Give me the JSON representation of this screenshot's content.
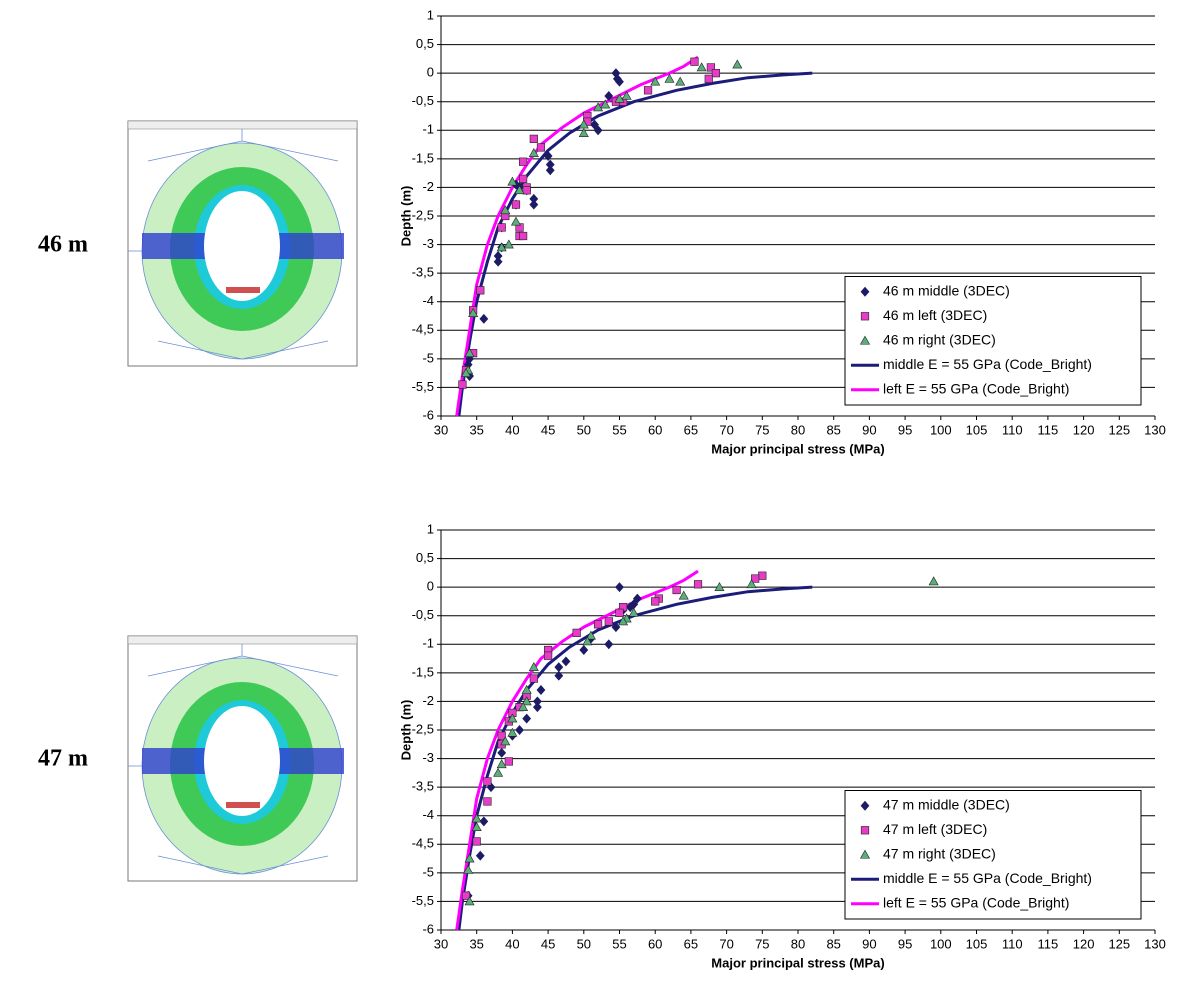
{
  "labels": [
    "46 m",
    "47 m"
  ],
  "chart_data": [
    {
      "type": "scatter",
      "legend": "lower right",
      "xlabel": "Major principal stress (MPa)",
      "ylabel": "Depth (m)",
      "xlim": [
        30,
        130
      ],
      "ylim": [
        -6,
        1
      ],
      "xticks": [
        30,
        35,
        40,
        45,
        50,
        55,
        60,
        65,
        70,
        75,
        80,
        85,
        90,
        95,
        100,
        105,
        110,
        115,
        120,
        125,
        130
      ],
      "yticks": [
        -6,
        {
          "value": -5.5,
          "label": "-5,5"
        },
        -5,
        {
          "value": -4.5,
          "label": "-4,5"
        },
        -4,
        {
          "value": -3.5,
          "label": "-3,5"
        },
        -3,
        {
          "value": -2.5,
          "label": "-2,5"
        },
        -2,
        {
          "value": -1.5,
          "label": "-1,5"
        },
        -1,
        {
          "value": -0.5,
          "label": "-0,5"
        },
        0,
        {
          "value": 0.5,
          "label": "0,5"
        },
        1
      ],
      "grid": true,
      "series": [
        {
          "name": "46 m middle (3DEC)",
          "marker": "diamond",
          "color": "#1c1c66",
          "x": [
            54.5,
            54.7,
            55,
            53.5,
            52,
            51.5,
            50.5,
            45,
            45.3,
            45.3,
            42,
            43,
            43,
            41,
            40.5,
            40.5,
            38.5,
            38,
            38,
            38.5,
            36,
            34,
            33.8,
            34
          ],
          "values": [
            0,
            -0.1,
            -0.15,
            -0.4,
            -1,
            -0.9,
            -0.8,
            -1.45,
            -1.6,
            -1.7,
            -2.05,
            -2.2,
            -2.3,
            -2,
            -1.95,
            -2.3,
            -2.7,
            -3.2,
            -3.3,
            -3.05,
            -4.3,
            -5,
            -5.1,
            -5.3
          ]
        },
        {
          "name": "46 m left (3DEC)",
          "marker": "square",
          "color": "#e63cc8",
          "x": [
            65.5,
            67.8,
            68.5,
            67.5,
            59,
            55.5,
            54.5,
            50.5,
            50.5,
            44,
            43,
            41.5,
            41.5,
            42,
            42,
            40.5,
            41,
            41,
            41.5,
            39,
            38.5,
            35.5,
            34.5,
            34.5,
            33.5,
            33
          ],
          "values": [
            0.2,
            0.1,
            0,
            -0.1,
            -0.3,
            -0.5,
            -0.5,
            -0.75,
            -0.85,
            -1.3,
            -1.15,
            -1.55,
            -1.85,
            -2,
            -2.05,
            -2.3,
            -2.7,
            -2.85,
            -2.85,
            -2.5,
            -2.7,
            -3.8,
            -4.15,
            -4.9,
            -5.2,
            -5.45
          ]
        },
        {
          "name": "46 m right (3DEC)",
          "marker": "triangle",
          "color": "#5aae7a",
          "x": [
            71.5,
            66.5,
            63.5,
            62,
            60,
            56,
            55,
            53,
            52,
            50,
            50,
            43,
            40,
            41,
            39,
            40.5,
            39.5,
            38.5,
            34.5,
            34,
            33.8,
            33.5
          ],
          "values": [
            0.15,
            0.1,
            -0.15,
            -0.1,
            -0.15,
            -0.4,
            -0.45,
            -0.55,
            -0.6,
            -0.9,
            -1.05,
            -1.4,
            -1.9,
            -2.05,
            -2.4,
            -2.6,
            -3,
            -3.05,
            -4.2,
            -4.9,
            -5.2,
            -5.25
          ]
        },
        {
          "name": "middle E = 55 GPa (Code_Bright)",
          "color": "#1c1c7a",
          "x": [
            32.5,
            33,
            34,
            35,
            36.5,
            38,
            40,
            42,
            45,
            48,
            52,
            57,
            63,
            68,
            73,
            78,
            82
          ],
          "values": [
            -6,
            -5.5,
            -4.7,
            -4,
            -3.3,
            -2.7,
            -2.2,
            -1.8,
            -1.35,
            -1.05,
            -0.75,
            -0.5,
            -0.3,
            -0.18,
            -0.08,
            -0.03,
            0
          ]
        },
        {
          "name": "left E = 55 GPa (Code_Bright)",
          "color": "#ff00ff",
          "x": [
            32.2,
            33,
            34,
            35,
            36.5,
            38,
            40,
            42,
            44,
            47,
            50,
            54,
            58,
            62,
            64,
            66
          ],
          "values": [
            -6,
            -5.3,
            -4.5,
            -3.7,
            -3,
            -2.5,
            -2,
            -1.6,
            -1.25,
            -0.95,
            -0.7,
            -0.45,
            -0.2,
            0,
            0.12,
            0.28
          ]
        }
      ]
    },
    {
      "type": "scatter",
      "legend": "lower right",
      "xlabel": "Major principal stress (MPa)",
      "ylabel": "Depth (m)",
      "xlim": [
        30,
        130
      ],
      "ylim": [
        -6,
        1
      ],
      "xticks": [
        30,
        35,
        40,
        45,
        50,
        55,
        60,
        65,
        70,
        75,
        80,
        85,
        90,
        95,
        100,
        105,
        110,
        115,
        120,
        125,
        130
      ],
      "yticks": [
        -6,
        {
          "value": -5.5,
          "label": "-5,5"
        },
        -5,
        {
          "value": -4.5,
          "label": "-4,5"
        },
        -4,
        {
          "value": -3.5,
          "label": "-3,5"
        },
        -3,
        {
          "value": -2.5,
          "label": "-2,5"
        },
        -2,
        {
          "value": -1.5,
          "label": "-1,5"
        },
        -1,
        {
          "value": -0.5,
          "label": "-0,5"
        },
        0,
        {
          "value": 0.5,
          "label": "0,5"
        },
        1
      ],
      "grid": true,
      "series": [
        {
          "name": "47 m middle (3DEC)",
          "marker": "diamond",
          "color": "#1c1c66",
          "x": [
            55,
            57.5,
            57,
            56.5,
            55.5,
            54.5,
            53.5,
            51,
            50,
            47.5,
            46.5,
            46.5,
            44,
            43.5,
            43.5,
            42,
            41,
            40,
            38.5,
            37,
            36,
            35.5,
            33.8
          ],
          "values": [
            0,
            -0.2,
            -0.3,
            -0.35,
            -0.4,
            -0.7,
            -1,
            -0.9,
            -1.1,
            -1.3,
            -1.4,
            -1.55,
            -1.8,
            -2,
            -2.1,
            -2.3,
            -2.5,
            -2.6,
            -2.9,
            -3.5,
            -4.1,
            -4.7,
            -5.4
          ]
        },
        {
          "name": "47 m left (3DEC)",
          "marker": "square",
          "color": "#e63cc8",
          "x": [
            75,
            74,
            66,
            63,
            60.5,
            60,
            55.5,
            55,
            53.5,
            52,
            49,
            45,
            45,
            43,
            42,
            41,
            40,
            39.5,
            38.5,
            38.5,
            39.5,
            36.5,
            36.5,
            35,
            33.5
          ],
          "values": [
            0.2,
            0.15,
            0.05,
            -0.05,
            -0.2,
            -0.25,
            -0.35,
            -0.45,
            -0.6,
            -0.65,
            -0.8,
            -1.1,
            -1.2,
            -1.6,
            -1.9,
            -2.1,
            -2.2,
            -2.35,
            -2.6,
            -2.75,
            -3.05,
            -3.4,
            -3.75,
            -4.45,
            -5.4
          ]
        },
        {
          "name": "47 m right (3DEC)",
          "marker": "triangle",
          "color": "#5aae7a",
          "x": [
            99,
            73.5,
            69,
            64,
            57,
            56,
            55.5,
            51,
            50.5,
            43,
            42,
            42,
            41.5,
            40,
            40,
            39,
            38.5,
            38,
            35,
            35,
            34,
            33.8,
            34
          ],
          "values": [
            0.1,
            0.05,
            0,
            -0.15,
            -0.45,
            -0.55,
            -0.6,
            -0.85,
            -0.95,
            -1.4,
            -1.8,
            -2,
            -2.1,
            -2.3,
            -2.55,
            -2.7,
            -3.1,
            -3.25,
            -4.05,
            -4.2,
            -4.75,
            -4.95,
            -5.5
          ]
        },
        {
          "name": "middle E = 55 GPa (Code_Bright)",
          "color": "#1c1c7a",
          "x": [
            32.5,
            33,
            34,
            35,
            36.5,
            38,
            40,
            42,
            45,
            48,
            52,
            57,
            63,
            68,
            73,
            78,
            82
          ],
          "values": [
            -6,
            -5.5,
            -4.7,
            -4,
            -3.3,
            -2.7,
            -2.2,
            -1.8,
            -1.35,
            -1.05,
            -0.75,
            -0.5,
            -0.3,
            -0.18,
            -0.08,
            -0.03,
            0
          ]
        },
        {
          "name": "left E = 55 GPa (Code_Bright)",
          "color": "#ff00ff",
          "x": [
            32.2,
            33,
            34,
            35,
            36.5,
            38,
            40,
            42,
            44,
            47,
            50,
            54,
            58,
            62,
            64,
            66
          ],
          "values": [
            -6,
            -5.3,
            -4.5,
            -3.7,
            -3,
            -2.5,
            -2,
            -1.6,
            -1.25,
            -0.95,
            -0.7,
            -0.45,
            -0.2,
            0,
            0.12,
            0.28
          ]
        }
      ]
    }
  ]
}
